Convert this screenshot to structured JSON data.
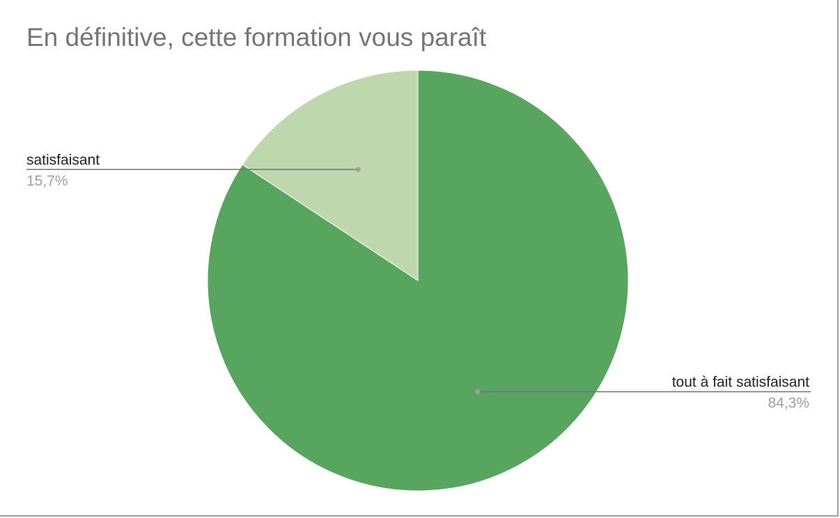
{
  "chart_data": {
    "type": "pie",
    "title": "En définitive, cette formation vous paraît",
    "slices": [
      {
        "label": "tout à fait satisfaisant",
        "value": 84.3,
        "value_label": "84,3%",
        "color": "#57a55e",
        "label_side": "right"
      },
      {
        "label": "satisfaisant",
        "value": 15.7,
        "value_label": "15,7%",
        "color": "#bfd7ac",
        "label_side": "left"
      }
    ],
    "start_angle": "12 o'clock",
    "direction": "clockwise",
    "leader_color": "#707070"
  }
}
